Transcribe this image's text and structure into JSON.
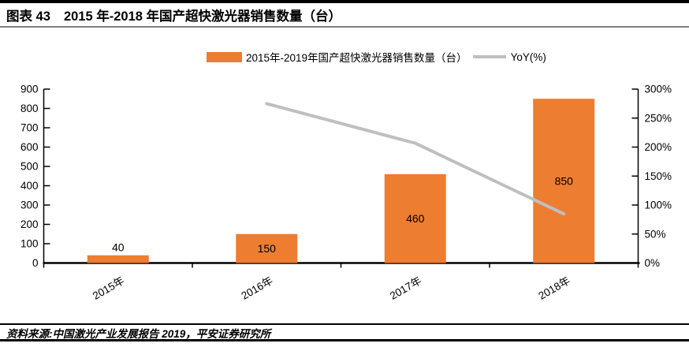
{
  "header": {
    "figure_label": "图表 43",
    "title": "2015 年-2018 年国产超快激光器销售数量（台）"
  },
  "legend": {
    "bar_series_label": "2015年-2019年国产超快激光器销售数量（台）",
    "line_series_label": "YoY(%)",
    "bar_color": "#ED7D31",
    "line_color": "#BFBFBF"
  },
  "chart_data": {
    "type": "bar",
    "title": "2015 年-2018 年国产超快激光器销售数量（台）",
    "categories": [
      "2015年",
      "2016年",
      "2017年",
      "2018年"
    ],
    "series": [
      {
        "name": "2015年-2019年国产超快激光器销售数量（台）",
        "type": "bar",
        "axis": "left",
        "color": "#ED7D31",
        "values": [
          40,
          150,
          460,
          850
        ],
        "data_labels": [
          "40",
          "150",
          "460",
          "850"
        ]
      },
      {
        "name": "YoY(%)",
        "type": "line",
        "axis": "right",
        "color": "#BFBFBF",
        "values": [
          null,
          275,
          206.7,
          84.8
        ]
      }
    ],
    "left_axis": {
      "min": 0,
      "max": 900,
      "step": 100,
      "tick_labels": [
        "0",
        "100",
        "200",
        "300",
        "400",
        "500",
        "600",
        "700",
        "800",
        "900"
      ]
    },
    "right_axis": {
      "min": 0,
      "max": 300,
      "step": 50,
      "tick_labels": [
        "0%",
        "50%",
        "100%",
        "150%",
        "200%",
        "250%",
        "300%"
      ]
    },
    "grid": false,
    "legend_position": "top"
  },
  "footer": {
    "source": "资料来源:中国激光产业发展报告 2019，平安证券研究所"
  }
}
